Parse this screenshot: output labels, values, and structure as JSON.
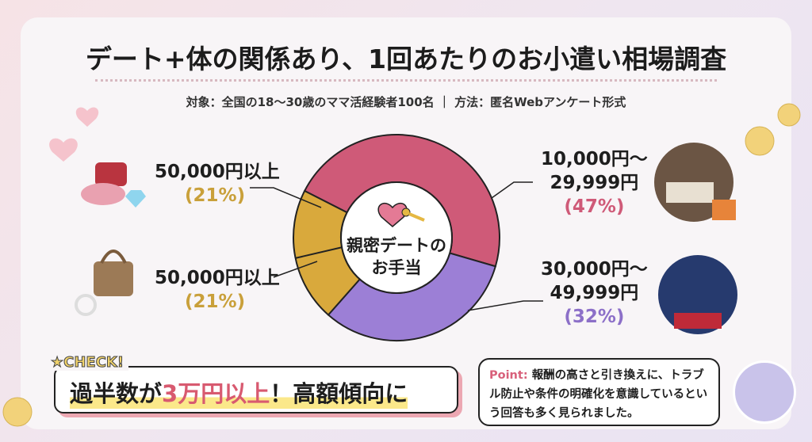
{
  "title": "デート+体の関係あり、1回あたりのお小遣い相場調査",
  "subtitle": "対象：全国の18〜30歳のママ活経験者100名 ｜ 方法：匿名Webアンケート形式",
  "center_label_1": "親密デートの",
  "center_label_2": "お手当",
  "labels": {
    "left_top": {
      "range": "50,000円以上",
      "pct": "(21%)"
    },
    "left_bottom": {
      "range": "50,000円以上",
      "pct": "(21%)"
    },
    "right_top": {
      "range1": "10,000円〜",
      "range2": "29,999円",
      "pct": "(47%)"
    },
    "right_bottom": {
      "range1": "30,000円〜",
      "range2": "49,999円",
      "pct": "(32%)"
    }
  },
  "check": {
    "tag": "CHECK!",
    "msg_a": "過半数が",
    "msg_b": "3万円以上",
    "msg_c": "！高額傾向に"
  },
  "point": {
    "label": "Point:",
    "text": "報酬の高さと引き換えに、トラブル防止や条件の明確化を意識しているという回答も多く見られました。"
  },
  "chart_data": {
    "type": "pie",
    "title": "親密デートのお手当",
    "categories": [
      "10,000円〜29,999円",
      "30,000円〜49,999円",
      "50,000円以上"
    ],
    "values": [
      47,
      32,
      21
    ],
    "colors": [
      "#cf5a78",
      "#9c7fd6",
      "#d9a93c"
    ]
  }
}
